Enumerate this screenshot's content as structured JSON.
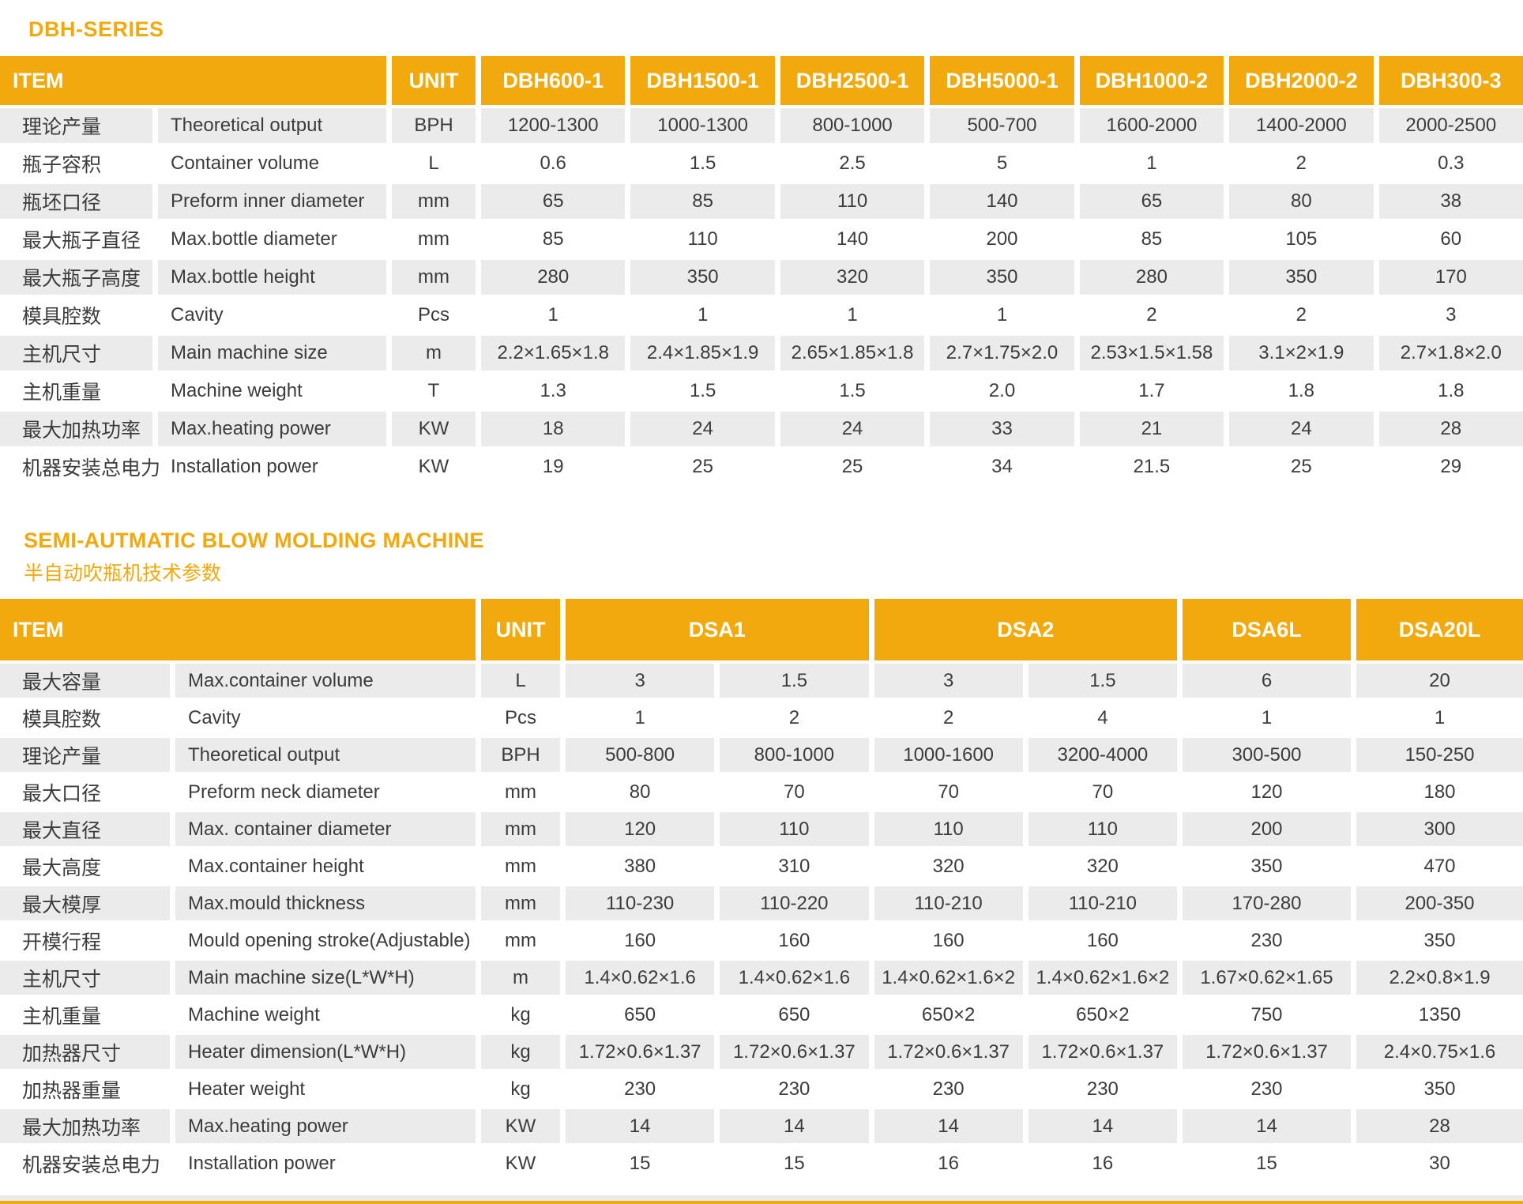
{
  "colors": {
    "accent": "#F2A90D",
    "row_stripe": "#EBEBEB",
    "text": "#3C3C3C",
    "header_text": "#FFFFFF"
  },
  "table1": {
    "title": "DBH-SERIES",
    "header": {
      "item": "ITEM",
      "unit": "UNIT",
      "models": [
        {
          "label": "DBH600-1",
          "span": 1
        },
        {
          "label": "DBH1500-1",
          "span": 1
        },
        {
          "label": "DBH2500-1",
          "span": 1
        },
        {
          "label": "DBH5000-1",
          "span": 1
        },
        {
          "label": "DBH1000-2",
          "span": 1
        },
        {
          "label": "DBH2000-2",
          "span": 1
        },
        {
          "label": "DBH300-3",
          "span": 1
        }
      ]
    },
    "rows": [
      {
        "cn": "理论产量",
        "en": "Theoretical  output",
        "unit": "BPH",
        "values": [
          "1200-1300",
          "1000-1300",
          "800-1000",
          "500-700",
          "1600-2000",
          "1400-2000",
          "2000-2500"
        ]
      },
      {
        "cn": "瓶子容积",
        "en": "Container volume",
        "unit": "L",
        "values": [
          "0.6",
          "1.5",
          "2.5",
          "5",
          "1",
          "2",
          "0.3"
        ]
      },
      {
        "cn": "瓶坯口径",
        "en": "Preform inner diameter",
        "unit": "mm",
        "values": [
          "65",
          "85",
          "110",
          "140",
          "65",
          "80",
          "38"
        ]
      },
      {
        "cn": "最大瓶子直径",
        "en": "Max.bottle diameter",
        "unit": "mm",
        "values": [
          "85",
          "110",
          "140",
          "200",
          "85",
          "105",
          "60"
        ]
      },
      {
        "cn": "最大瓶子高度",
        "en": "Max.bottle height",
        "unit": "mm",
        "values": [
          "280",
          "350",
          "320",
          "350",
          "280",
          "350",
          "170"
        ]
      },
      {
        "cn": "模具腔数",
        "en": "Cavity",
        "unit": "Pcs",
        "values": [
          "1",
          "1",
          "1",
          "1",
          "2",
          "2",
          "3"
        ]
      },
      {
        "cn": "主机尺寸",
        "en": "Main machine size",
        "unit": "m",
        "values": [
          "2.2×1.65×1.8",
          "2.4×1.85×1.9",
          "2.65×1.85×1.8",
          "2.7×1.75×2.0",
          "2.53×1.5×1.58",
          "3.1×2×1.9",
          "2.7×1.8×2.0"
        ]
      },
      {
        "cn": "主机重量",
        "en": "Machine weight",
        "unit": "T",
        "values": [
          "1.3",
          "1.5",
          "1.5",
          "2.0",
          "1.7",
          "1.8",
          "1.8"
        ]
      },
      {
        "cn": "最大加热功率",
        "en": "Max.heating power",
        "unit": "KW",
        "values": [
          "18",
          "24",
          "24",
          "33",
          "21",
          "24",
          "28"
        ]
      },
      {
        "cn": "机器安装总电力",
        "en": "Installation power",
        "unit": "KW",
        "values": [
          "19",
          "25",
          "25",
          "34",
          "21.5",
          "25",
          "29"
        ]
      }
    ]
  },
  "table2": {
    "title": "SEMI-AUTMATIC BLOW MOLDING MACHINE",
    "subtitle": "半自动吹瓶机技术参数",
    "header": {
      "item": "ITEM",
      "unit": "UNIT",
      "models": [
        {
          "label": "DSA1",
          "span": 2
        },
        {
          "label": "DSA2",
          "span": 2
        },
        {
          "label": "DSA6L",
          "span": 1
        },
        {
          "label": "DSA20L",
          "span": 1
        }
      ]
    },
    "rows": [
      {
        "cn": "最大容量",
        "en": "Max.container volume",
        "unit": "L",
        "values": [
          "3",
          "1.5",
          "3",
          "1.5",
          "6",
          "20"
        ]
      },
      {
        "cn": "模具腔数",
        "en": "Cavity",
        "unit": "Pcs",
        "values": [
          "1",
          "2",
          "2",
          "4",
          "1",
          "1"
        ]
      },
      {
        "cn": "理论产量",
        "en": "Theoretical  output",
        "unit": "BPH",
        "values": [
          "500-800",
          "800-1000",
          "1000-1600",
          "3200-4000",
          "300-500",
          "150-250"
        ]
      },
      {
        "cn": "最大口径",
        "en": "Preform neck diameter",
        "unit": "mm",
        "values": [
          "80",
          "70",
          "70",
          "70",
          "120",
          "180"
        ]
      },
      {
        "cn": "最大直径",
        "en": "Max. container  diameter",
        "unit": "mm",
        "values": [
          "120",
          "110",
          "110",
          "110",
          "200",
          "300"
        ]
      },
      {
        "cn": "最大高度",
        "en": "Max.container height",
        "unit": "mm",
        "values": [
          "380",
          "310",
          "320",
          "320",
          "350",
          "470"
        ]
      },
      {
        "cn": "最大模厚",
        "en": "Max.mould thickness",
        "unit": "mm",
        "values": [
          "110-230",
          "110-220",
          "110-210",
          "110-210",
          "170-280",
          "200-350"
        ]
      },
      {
        "cn": "开模行程",
        "en": "Mould opening stroke(Adjustable)",
        "unit": "mm",
        "values": [
          "160",
          "160",
          "160",
          "160",
          "230",
          "350"
        ]
      },
      {
        "cn": "主机尺寸",
        "en": "Main machine size(L*W*H)",
        "unit": "m",
        "values": [
          "1.4×0.62×1.6",
          "1.4×0.62×1.6",
          "1.4×0.62×1.6×2",
          "1.4×0.62×1.6×2",
          "1.67×0.62×1.65",
          "2.2×0.8×1.9"
        ]
      },
      {
        "cn": "主机重量",
        "en": "Machine weight",
        "unit": "kg",
        "values": [
          "650",
          "650",
          "650×2",
          "650×2",
          "750",
          "1350"
        ]
      },
      {
        "cn": "加热器尺寸",
        "en": "Heater dimension(L*W*H)",
        "unit": "kg",
        "values": [
          "1.72×0.6×1.37",
          "1.72×0.6×1.37",
          "1.72×0.6×1.37",
          "1.72×0.6×1.37",
          "1.72×0.6×1.37",
          "2.4×0.75×1.6"
        ]
      },
      {
        "cn": "加热器重量",
        "en": "Heater weight",
        "unit": "kg",
        "values": [
          "230",
          "230",
          "230",
          "230",
          "230",
          "350"
        ]
      },
      {
        "cn": "最大加热功率",
        "en": "Max.heating power",
        "unit": "KW",
        "values": [
          "14",
          "14",
          "14",
          "14",
          "14",
          "28"
        ]
      },
      {
        "cn": "机器安装总电力",
        "en": "Installation power",
        "unit": "KW",
        "values": [
          "15",
          "15",
          "16",
          "16",
          "15",
          "30"
        ]
      }
    ]
  }
}
